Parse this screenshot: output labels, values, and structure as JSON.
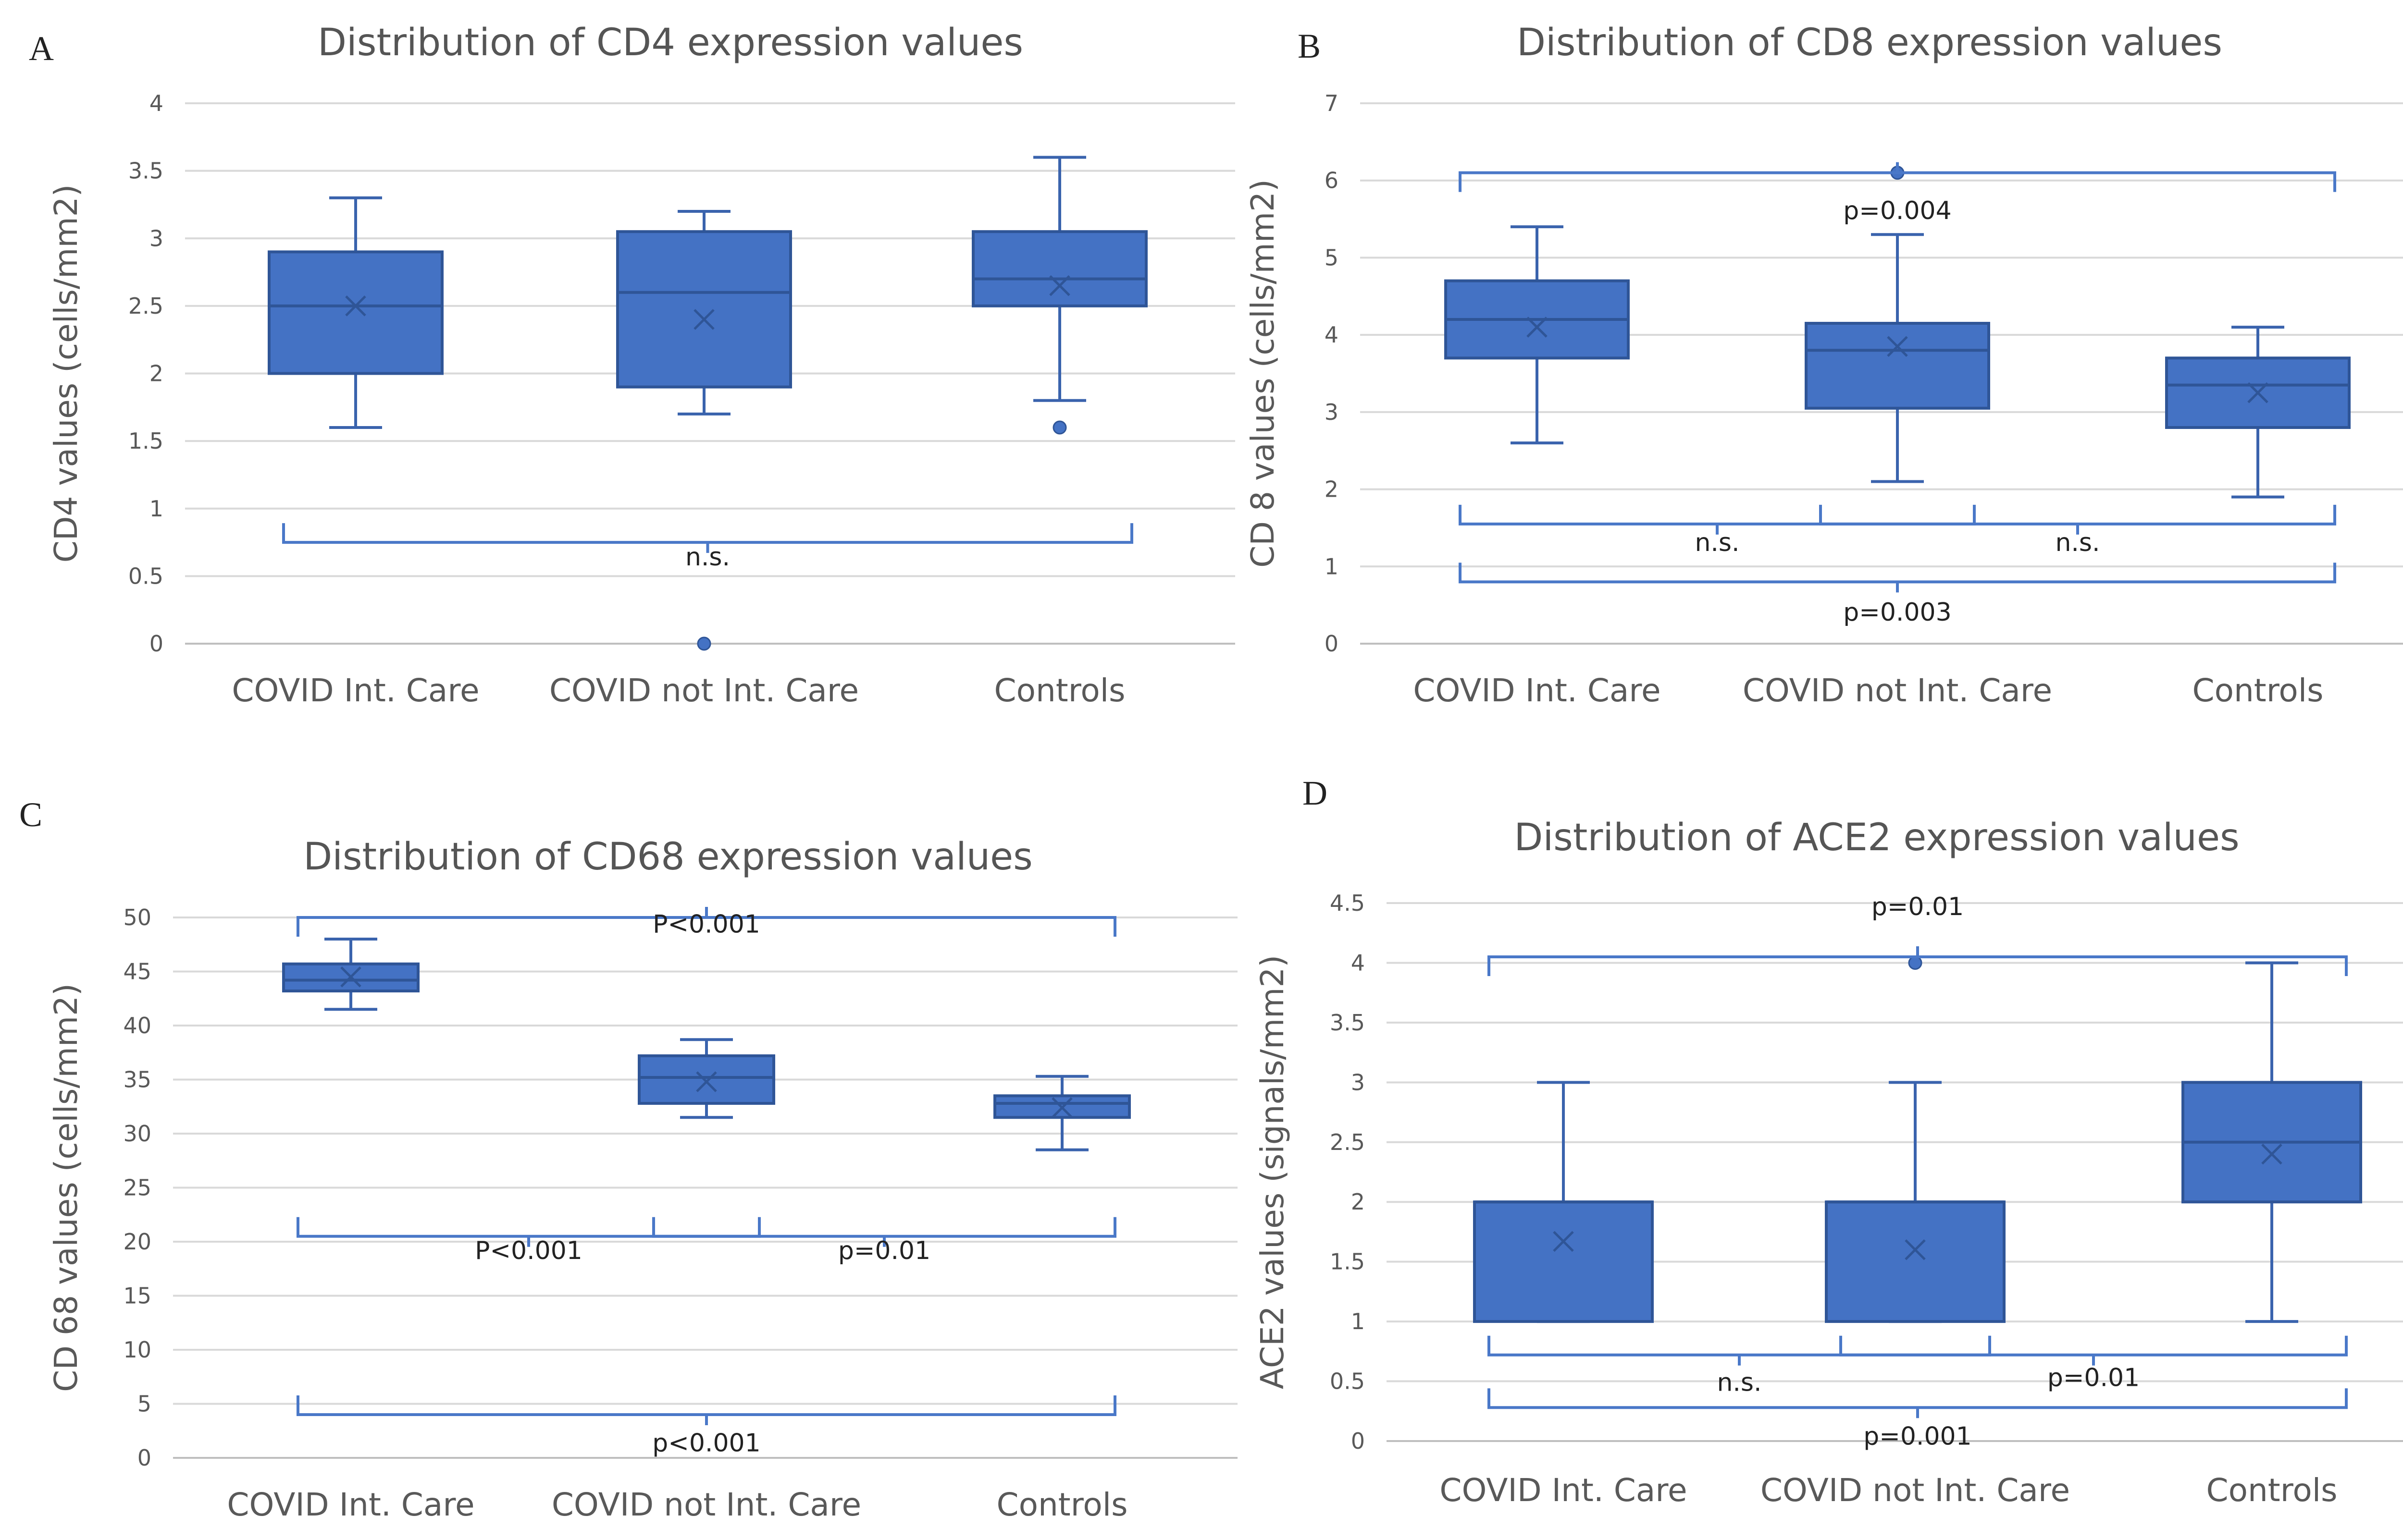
{
  "chart_data": [
    {
      "panel": "A",
      "type": "boxplot",
      "title": "Distribution of CD4 expression values",
      "ylabel": "CD4 values (cells/mm2)",
      "xlabel": "",
      "ylim": [
        0,
        4
      ],
      "yticks": [
        0,
        0.5,
        1,
        1.5,
        2,
        2.5,
        3,
        3.5,
        4
      ],
      "categories": [
        "COVID Int. Care",
        "COVID not Int. Care",
        "Controls"
      ],
      "boxes": [
        {
          "category": "COVID Int. Care",
          "min": 1.6,
          "q1": 2.0,
          "median": 2.5,
          "q3": 2.9,
          "max": 3.3,
          "mean": 2.5,
          "outliers": []
        },
        {
          "category": "COVID not Int. Care",
          "min": 1.7,
          "q1": 1.9,
          "median": 2.6,
          "q3": 3.05,
          "max": 3.2,
          "mean": 2.4,
          "outliers": [
            0
          ]
        },
        {
          "category": "Controls",
          "min": 1.8,
          "q1": 2.5,
          "median": 2.7,
          "q3": 3.05,
          "max": 3.6,
          "mean": 2.65,
          "outliers": [
            1.6
          ]
        }
      ],
      "annotations": [
        {
          "label": "n.s.",
          "from": 0,
          "to": 2,
          "y": 0.75,
          "dir": "down",
          "text_y": 0.58
        }
      ]
    },
    {
      "panel": "B",
      "type": "boxplot",
      "title": "Distribution of CD8 expression values",
      "ylabel": "CD 8 values (cells/mm2)",
      "xlabel": "",
      "ylim": [
        0,
        7
      ],
      "yticks": [
        0,
        1,
        2,
        3,
        4,
        5,
        6,
        7
      ],
      "categories": [
        "COVID Int. Care",
        "COVID not Int. Care",
        "Controls"
      ],
      "boxes": [
        {
          "category": "COVID Int. Care",
          "min": 2.6,
          "q1": 3.7,
          "median": 4.2,
          "q3": 4.7,
          "max": 5.4,
          "mean": 4.1,
          "outliers": []
        },
        {
          "category": "COVID not Int. Care",
          "min": 2.1,
          "q1": 3.05,
          "median": 3.8,
          "q3": 4.15,
          "max": 5.3,
          "mean": 3.85,
          "outliers": [
            6.1
          ]
        },
        {
          "category": "Controls",
          "min": 1.9,
          "q1": 2.8,
          "median": 3.35,
          "q3": 3.7,
          "max": 4.1,
          "mean": 3.25,
          "outliers": []
        }
      ],
      "annotations": [
        {
          "label": "p=0.004",
          "from": 0,
          "to": 2,
          "y": 6.1,
          "dir": "up",
          "text_y": 5.5
        },
        {
          "label": "n.s.",
          "from": 0,
          "to": 1,
          "y": 1.55,
          "dir": "down",
          "text_y": 1.2
        },
        {
          "label": "n.s.",
          "from": 1,
          "to": 2,
          "y": 1.55,
          "dir": "down",
          "text_y": 1.2
        },
        {
          "label": "p=0.003",
          "from": 0,
          "to": 2,
          "y": 0.8,
          "dir": "down",
          "text_y": 0.3
        }
      ]
    },
    {
      "panel": "C",
      "type": "boxplot",
      "title": "Distribution of CD68 expression values",
      "ylabel": "CD 68 values (cells/mm2)",
      "xlabel": "",
      "ylim": [
        0,
        50
      ],
      "yticks": [
        0,
        5,
        10,
        15,
        20,
        25,
        30,
        35,
        40,
        45,
        50
      ],
      "categories": [
        "COVID Int. Care",
        "COVID not Int. Care",
        "Controls"
      ],
      "boxes": [
        {
          "category": "COVID Int. Care",
          "min": 41.5,
          "q1": 43.2,
          "median": 44.2,
          "q3": 45.7,
          "max": 48.0,
          "mean": 44.5,
          "outliers": []
        },
        {
          "category": "COVID not Int. Care",
          "min": 31.5,
          "q1": 32.8,
          "median": 35.2,
          "q3": 37.2,
          "max": 38.7,
          "mean": 34.8,
          "outliers": []
        },
        {
          "category": "Controls",
          "min": 28.5,
          "q1": 31.5,
          "median": 32.8,
          "q3": 33.5,
          "max": 35.3,
          "mean": 32.4,
          "outliers": []
        }
      ],
      "annotations": [
        {
          "label": "P<0.001",
          "from": 0,
          "to": 2,
          "y": 50,
          "dir": "up",
          "text_y": 48.6
        },
        {
          "label": "P<0.001",
          "from": 0,
          "to": 1,
          "y": 20.5,
          "dir": "down",
          "text_y": 18.4
        },
        {
          "label": "p=0.01",
          "from": 1,
          "to": 2,
          "y": 20.5,
          "dir": "down",
          "text_y": 18.4
        },
        {
          "label": "p<0.001",
          "from": 0,
          "to": 2,
          "y": 4,
          "dir": "down",
          "text_y": 0.6
        }
      ]
    },
    {
      "panel": "D",
      "type": "boxplot",
      "title": "Distribution of ACE2 expression values",
      "ylabel": "ACE2  values (signals/mm2)",
      "xlabel": "",
      "ylim": [
        0,
        4.5
      ],
      "yticks": [
        0,
        0.5,
        1,
        1.5,
        2,
        2.5,
        3,
        3.5,
        4,
        4.5
      ],
      "categories": [
        "COVID Int. Care",
        "COVID not Int. Care",
        "Controls"
      ],
      "boxes": [
        {
          "category": "COVID Int. Care",
          "min": 1.0,
          "q1": 1.0,
          "median": 2.0,
          "q3": 2.0,
          "max": 3.0,
          "mean": 1.67,
          "outliers": []
        },
        {
          "category": "COVID not Int. Care",
          "min": 1.0,
          "q1": 1.0,
          "median": 2.0,
          "q3": 2.0,
          "max": 3.0,
          "mean": 1.6,
          "outliers": [
            4.0
          ]
        },
        {
          "category": "Controls",
          "min": 1.0,
          "q1": 2.0,
          "median": 2.5,
          "q3": 3.0,
          "max": 4.0,
          "mean": 2.4,
          "outliers": []
        }
      ],
      "annotations": [
        {
          "label": "p=0.01",
          "from": 0,
          "to": 2,
          "y": 4.05,
          "dir": "up",
          "text_y": 4.4
        },
        {
          "label": "n.s.",
          "from": 0,
          "to": 1,
          "y": 0.72,
          "dir": "down",
          "text_y": 0.42
        },
        {
          "label": "p=0.01",
          "from": 1,
          "to": 2,
          "y": 0.72,
          "dir": "down",
          "text_y": 0.46
        },
        {
          "label": "p=0.001",
          "from": 0,
          "to": 2,
          "y": 0.28,
          "dir": "down",
          "text_y": -0.03
        }
      ]
    }
  ],
  "colors": {
    "box_fill": "#4472c4",
    "box_stroke": "#2f5597",
    "whisker": "#3a63ad",
    "mean_marker": "#2f5597",
    "bracket": "#4a78c8",
    "grid": "#d9d9d9",
    "axis": "#bfbfbf"
  }
}
